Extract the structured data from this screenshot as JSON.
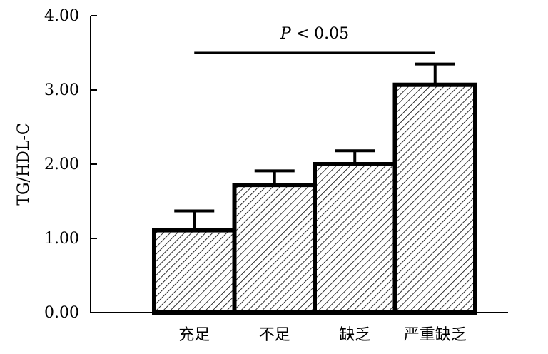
{
  "chart_data": {
    "type": "bar",
    "title": "",
    "xlabel": "",
    "ylabel": "TG/HDL-C",
    "categories": [
      "充足",
      "不足",
      "缺乏",
      "严重缺乏"
    ],
    "values": [
      1.11,
      1.72,
      2.0,
      3.07
    ],
    "error_plus": [
      0.26,
      0.19,
      0.18,
      0.28
    ],
    "ylim": [
      0,
      4.0
    ],
    "yticks": [
      "0.00",
      "1.00",
      "2.00",
      "3.00",
      "4.00"
    ],
    "bar_fill": "hatched",
    "grid": false,
    "annotation": {
      "prefix": "P",
      "text": " < 0.05",
      "from_category": 0,
      "to_category": 3
    },
    "colors": {
      "bar_stroke": "#000000",
      "hatch": "#000000",
      "background": "#ffffff"
    }
  }
}
